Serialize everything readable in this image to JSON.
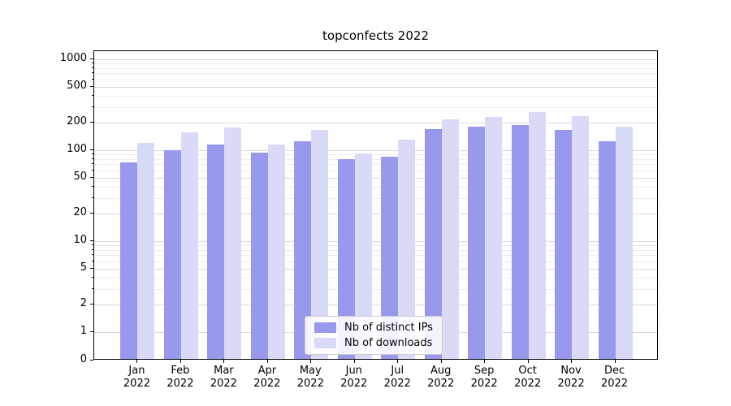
{
  "title": "topconfects 2022",
  "chart_data": {
    "type": "bar",
    "title": "topconfects 2022",
    "categories": [
      "Jan 2022",
      "Feb 2022",
      "Mar 2022",
      "Apr 2022",
      "May 2022",
      "Jun 2022",
      "Jul 2022",
      "Aug 2022",
      "Sep 2022",
      "Oct 2022",
      "Nov 2022",
      "Dec 2022"
    ],
    "x_months": [
      "Jan",
      "Feb",
      "Mar",
      "Apr",
      "May",
      "Jun",
      "Jul",
      "Aug",
      "Sep",
      "Oct",
      "Nov",
      "Dec"
    ],
    "x_year": "2022",
    "series": [
      {
        "name": "Nb of distinct IPs",
        "color": "#9898ec",
        "values": [
          70,
          96,
          110,
          90,
          120,
          76,
          82,
          165,
          175,
          180,
          160,
          120
        ]
      },
      {
        "name": "Nb of downloads",
        "color": "#d9d9f8",
        "values": [
          115,
          150,
          172,
          112,
          162,
          89,
          126,
          210,
          222,
          252,
          228,
          176
        ]
      }
    ],
    "yscale": "symlog",
    "yticks": [
      0,
      1,
      2,
      5,
      10,
      20,
      50,
      100,
      200,
      500,
      1000
    ],
    "ylim": [
      0,
      1200
    ],
    "grid": true,
    "legend_position": "lower center"
  }
}
